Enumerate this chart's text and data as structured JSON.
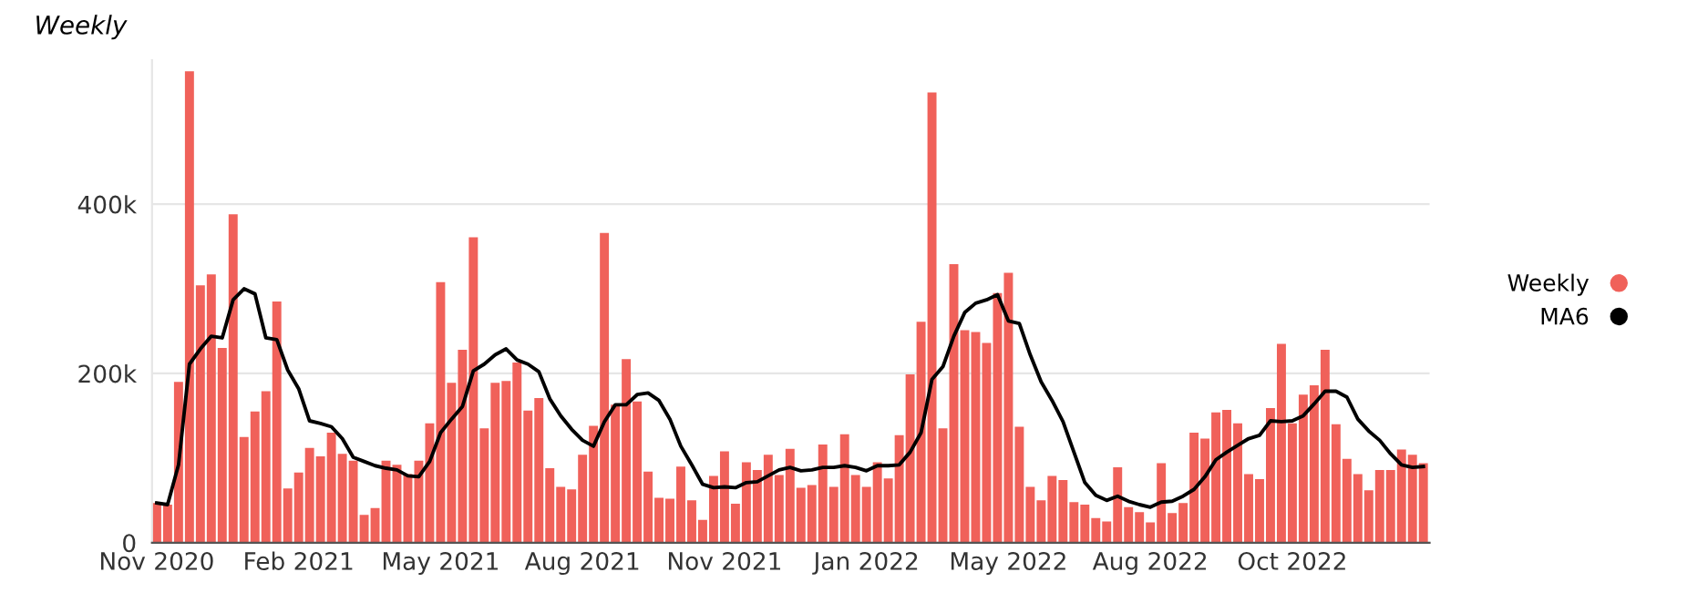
{
  "chart_data": {
    "type": "bar",
    "title": "Weekly",
    "x": [
      "2020-11-02",
      "2020-11-09",
      "2020-11-16",
      "2020-11-23",
      "2020-11-30",
      "2020-12-07",
      "2020-12-14",
      "2020-12-21",
      "2020-12-28",
      "2021-01-04",
      "2021-01-11",
      "2021-01-18",
      "2021-01-25",
      "2021-02-01",
      "2021-02-08",
      "2021-02-15",
      "2021-02-22",
      "2021-03-01",
      "2021-03-08",
      "2021-03-15",
      "2021-03-22",
      "2021-03-29",
      "2021-04-05",
      "2021-04-12",
      "2021-04-19",
      "2021-04-26",
      "2021-05-03",
      "2021-05-10",
      "2021-05-17",
      "2021-05-24",
      "2021-05-31",
      "2021-06-07",
      "2021-06-14",
      "2021-06-21",
      "2021-06-28",
      "2021-07-05",
      "2021-07-12",
      "2021-07-19",
      "2021-07-26",
      "2021-08-02",
      "2021-08-09",
      "2021-08-16",
      "2021-08-23",
      "2021-08-30",
      "2021-09-06",
      "2021-09-13",
      "2021-09-20",
      "2021-09-27",
      "2021-10-04",
      "2021-10-11",
      "2021-10-18",
      "2021-10-25",
      "2021-11-01",
      "2021-11-08",
      "2021-11-15",
      "2021-11-22",
      "2021-11-29",
      "2021-12-06",
      "2021-12-13",
      "2021-12-20",
      "2021-12-27",
      "2022-01-03",
      "2022-01-10",
      "2022-01-17",
      "2022-01-24",
      "2022-01-31",
      "2022-02-07",
      "2022-02-14",
      "2022-02-21",
      "2022-02-28",
      "2022-03-07",
      "2022-03-14",
      "2022-03-21",
      "2022-03-28",
      "2022-04-04",
      "2022-04-11",
      "2022-04-18",
      "2022-04-25",
      "2022-05-02",
      "2022-05-09",
      "2022-05-16",
      "2022-05-23",
      "2022-05-30",
      "2022-06-06",
      "2022-06-13",
      "2022-06-20",
      "2022-06-27",
      "2022-07-04",
      "2022-07-11",
      "2022-07-18",
      "2022-07-25",
      "2022-08-01",
      "2022-08-08",
      "2022-08-15",
      "2022-08-22",
      "2022-08-29",
      "2022-09-05",
      "2022-09-12",
      "2022-09-19",
      "2022-09-26",
      "2022-10-03",
      "2022-10-10",
      "2022-10-17",
      "2022-10-24",
      "2022-10-31",
      "2022-11-07",
      "2022-11-14",
      "2022-11-21",
      "2022-11-28",
      "2022-12-05",
      "2022-12-12",
      "2022-12-19",
      "2022-12-26",
      "2023-01-02",
      "2023-01-09",
      "2023-01-16",
      "2023-01-23"
    ],
    "series": [
      {
        "name": "Weekly",
        "color": "#f0615a",
        "values": [
          47000,
          45000,
          190000,
          557000,
          304000,
          317000,
          230000,
          388000,
          125000,
          155000,
          179000,
          285000,
          64000,
          83000,
          112000,
          102000,
          130000,
          105000,
          97000,
          33000,
          41000,
          97000,
          92000,
          81000,
          97000,
          141000,
          308000,
          189000,
          228000,
          361000,
          135000,
          189000,
          191000,
          213000,
          156000,
          171000,
          88000,
          66000,
          63000,
          104000,
          138000,
          366000,
          163000,
          217000,
          167000,
          84000,
          53000,
          52000,
          90000,
          50000,
          27000,
          79000,
          108000,
          46000,
          95000,
          86000,
          104000,
          80000,
          111000,
          65000,
          68000,
          116000,
          66000,
          128000,
          80000,
          66000,
          95000,
          76000,
          127000,
          199000,
          261000,
          532000,
          135000,
          329000,
          251000,
          249000,
          236000,
          295000,
          319000,
          137000,
          66000,
          50000,
          79000,
          74000,
          48000,
          45000,
          29000,
          25000,
          89000,
          42000,
          36000,
          24000,
          94000,
          35000,
          47000,
          130000,
          123000,
          154000,
          157000,
          141000,
          81000,
          75000,
          159000,
          235000,
          141000,
          175000,
          186000,
          228000,
          140000,
          99000,
          81000,
          62000,
          86000,
          86000,
          110000,
          104000,
          94000
        ]
      },
      {
        "name": "MA6",
        "type": "line",
        "color": "#000000",
        "values": [
          47000,
          45000,
          92000,
          211000,
          229000,
          244000,
          242000,
          287000,
          300000,
          294000,
          242000,
          240000,
          204000,
          182000,
          144000,
          141000,
          137000,
          123000,
          101000,
          96000,
          91000,
          88000,
          86000,
          79000,
          78000,
          96000,
          130000,
          146000,
          161000,
          203000,
          211000,
          222000,
          229000,
          216000,
          211000,
          202000,
          170000,
          150000,
          134000,
          121000,
          114000,
          143000,
          163000,
          163000,
          175000,
          177000,
          168000,
          146000,
          114000,
          92000,
          69000,
          65000,
          66000,
          65000,
          71000,
          72000,
          79000,
          86000,
          89000,
          85000,
          86000,
          89000,
          89000,
          91000,
          89000,
          85000,
          91000,
          91000,
          92000,
          107000,
          130000,
          193000,
          208000,
          244000,
          272000,
          283000,
          287000,
          293000,
          262000,
          259000,
          222000,
          190000,
          168000,
          143000,
          107000,
          71000,
          56000,
          50000,
          55000,
          49000,
          45000,
          42000,
          48000,
          49000,
          55000,
          63000,
          78000,
          98000,
          107000,
          115000,
          123000,
          127000,
          144000,
          143000,
          144000,
          150000,
          164000,
          179000,
          179000,
          172000,
          146000,
          132000,
          121000,
          105000,
          92000,
          89000,
          90000
        ]
      }
    ],
    "xlim": [
      "2020-10-30",
      "2023-01-27"
    ],
    "xticks": [
      {
        "value": "2020-11-02",
        "label": "Nov 2020"
      },
      {
        "value": "2021-02-01",
        "label": "Feb 2021"
      },
      {
        "value": "2021-05-03",
        "label": "May 2021"
      },
      {
        "value": "2021-08-02",
        "label": "Aug 2021"
      },
      {
        "value": "2021-11-01",
        "label": "Nov 2021"
      },
      {
        "value": "2022-01-31",
        "label": "Jan 2022"
      },
      {
        "value": "2022-05-02",
        "label": "May 2022"
      },
      {
        "value": "2022-08-01",
        "label": "Aug 2022"
      },
      {
        "value": "2022-10-31",
        "label": "Oct 2022"
      }
    ],
    "ylim": [
      0,
      570000
    ],
    "yticks": [
      0,
      {
        "value": 200000,
        "label": "200k"
      },
      {
        "value": 400000,
        "label": "400k"
      }
    ],
    "grid": "y",
    "legend": "right"
  }
}
